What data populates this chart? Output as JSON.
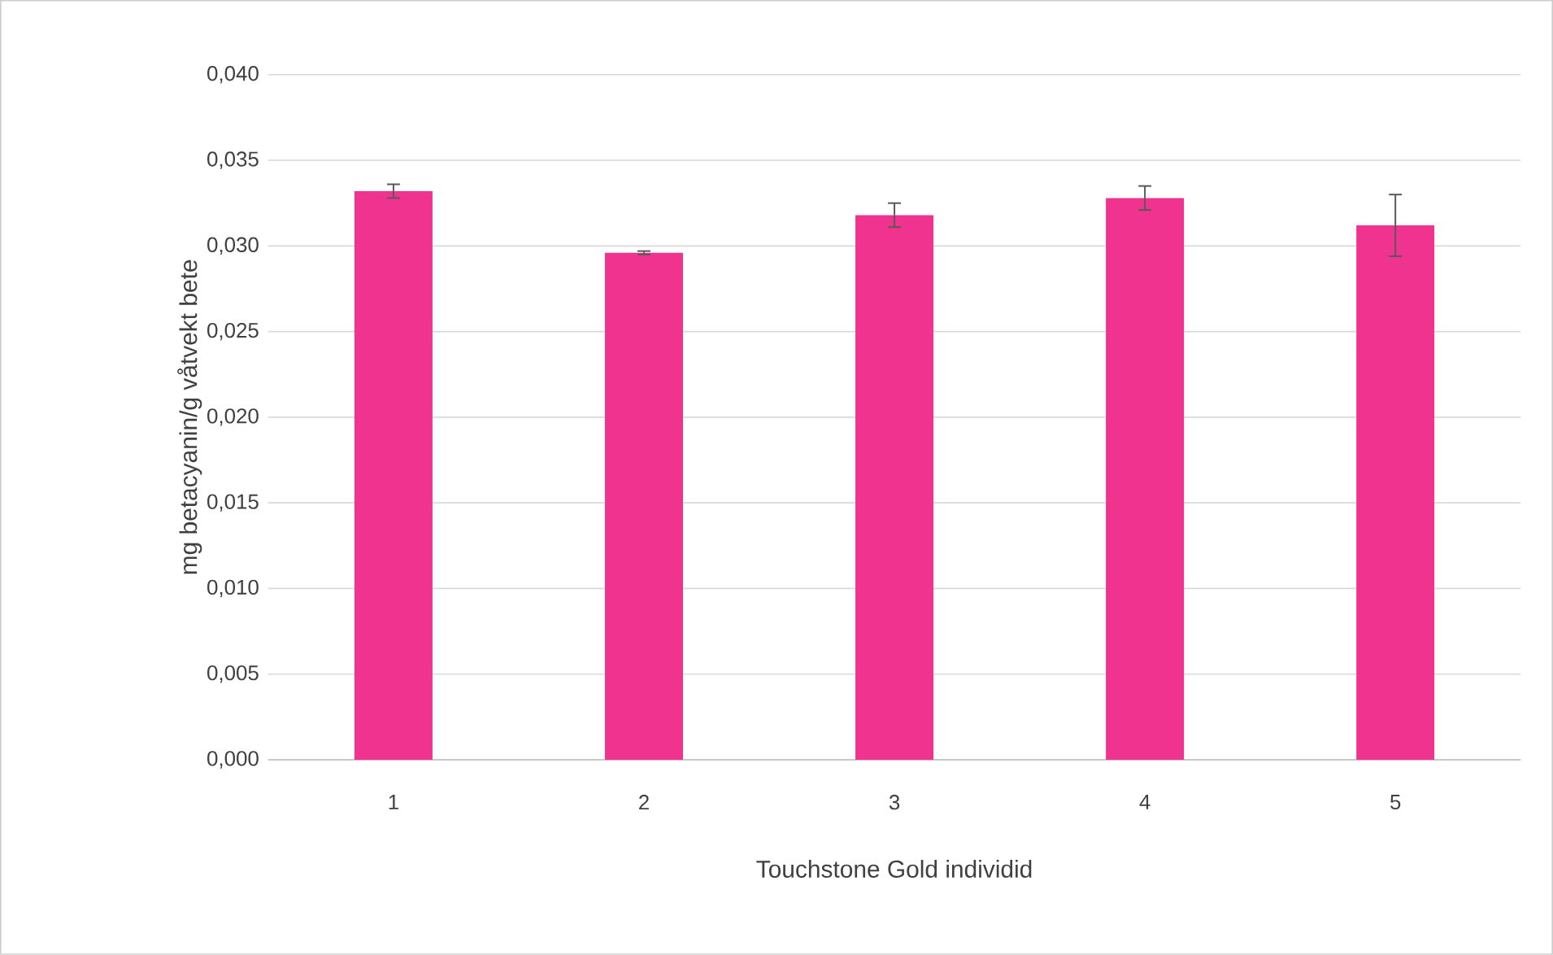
{
  "chart_data": {
    "type": "bar",
    "xlabel": "Touchstone Gold individid",
    "ylabel": "mg betacyanin/g våtvekt bete",
    "categories": [
      "1",
      "2",
      "3",
      "4",
      "5"
    ],
    "values": [
      0.0332,
      0.0296,
      0.0318,
      0.0328,
      0.0312
    ],
    "errors": [
      0.0004,
      0.0001,
      0.0007,
      0.0007,
      0.0018
    ],
    "color": "#f0338f",
    "ylim": [
      0,
      0.04
    ],
    "yticks": [
      {
        "value": 0,
        "label": "0,000"
      },
      {
        "value": 0.005,
        "label": "0,005"
      },
      {
        "value": 0.01,
        "label": "0,010"
      },
      {
        "value": 0.015,
        "label": "0,015"
      },
      {
        "value": 0.02,
        "label": "0,020"
      },
      {
        "value": 0.025,
        "label": "0,025"
      },
      {
        "value": 0.03,
        "label": "0,030"
      },
      {
        "value": 0.035,
        "label": "0,035"
      },
      {
        "value": 0.04,
        "label": "0,040"
      }
    ],
    "grid": "y"
  }
}
